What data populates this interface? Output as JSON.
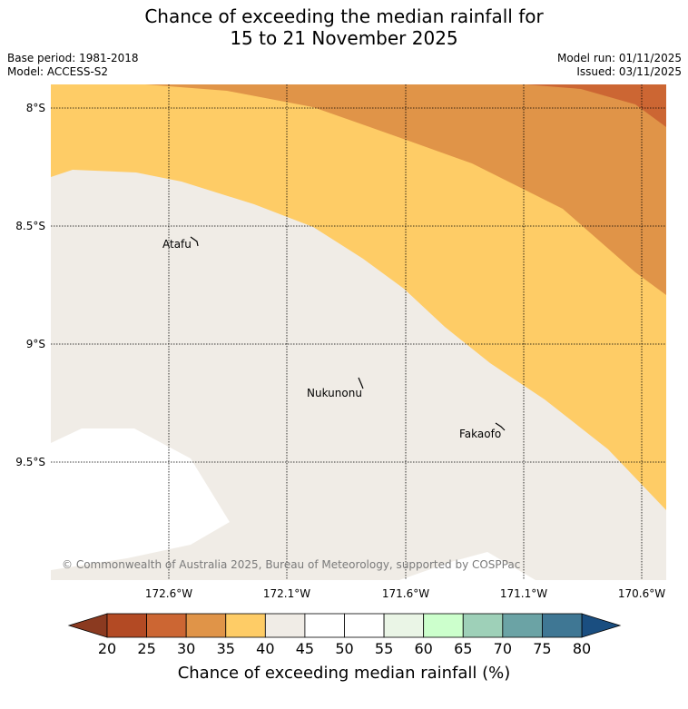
{
  "title_line1": "Chance of exceeding the median rainfall for",
  "title_line2": "15 to 21 November 2025",
  "meta": {
    "base_period": "Base period: 1981-2018",
    "model": "Model: ACCESS-S2",
    "model_run": "Model run: 01/11/2025",
    "issued": "Issued: 03/11/2025"
  },
  "map": {
    "lat_labels": [
      "8°S",
      "8.5°S",
      "9°S",
      "9.5°S"
    ],
    "lon_labels": [
      "172.6°W",
      "172.1°W",
      "171.6°W",
      "171.1°W",
      "170.6°W"
    ],
    "places": [
      "Atafu",
      "Nukunonu",
      "Fakaofo"
    ],
    "copyright": "© Commonwealth of Australia 2025, Bureau of Meteorology, supported by COSPPac"
  },
  "legend": {
    "ticks": [
      "20",
      "25",
      "30",
      "35",
      "40",
      "45",
      "50",
      "55",
      "60",
      "65",
      "70",
      "75",
      "80"
    ],
    "colors": [
      "#b34a24",
      "#cc6633",
      "#e09448",
      "#fecc66",
      "#f0ece6",
      "#ffffff",
      "#ffffff",
      "#eaf5e6",
      "#ccffcc",
      "#9ed0b8",
      "#6ba3a5",
      "#3f7794"
    ],
    "under_color": "#8b3a20",
    "over_color": "#1a4e80",
    "title": "Chance of exceeding median rainfall (%)"
  },
  "colors": {
    "band_25_30": "#cc6633",
    "band_30_35": "#e09448",
    "band_35_40": "#fecc66",
    "band_40_45": "#f0ece6",
    "band_45_50": "#ffffff"
  }
}
